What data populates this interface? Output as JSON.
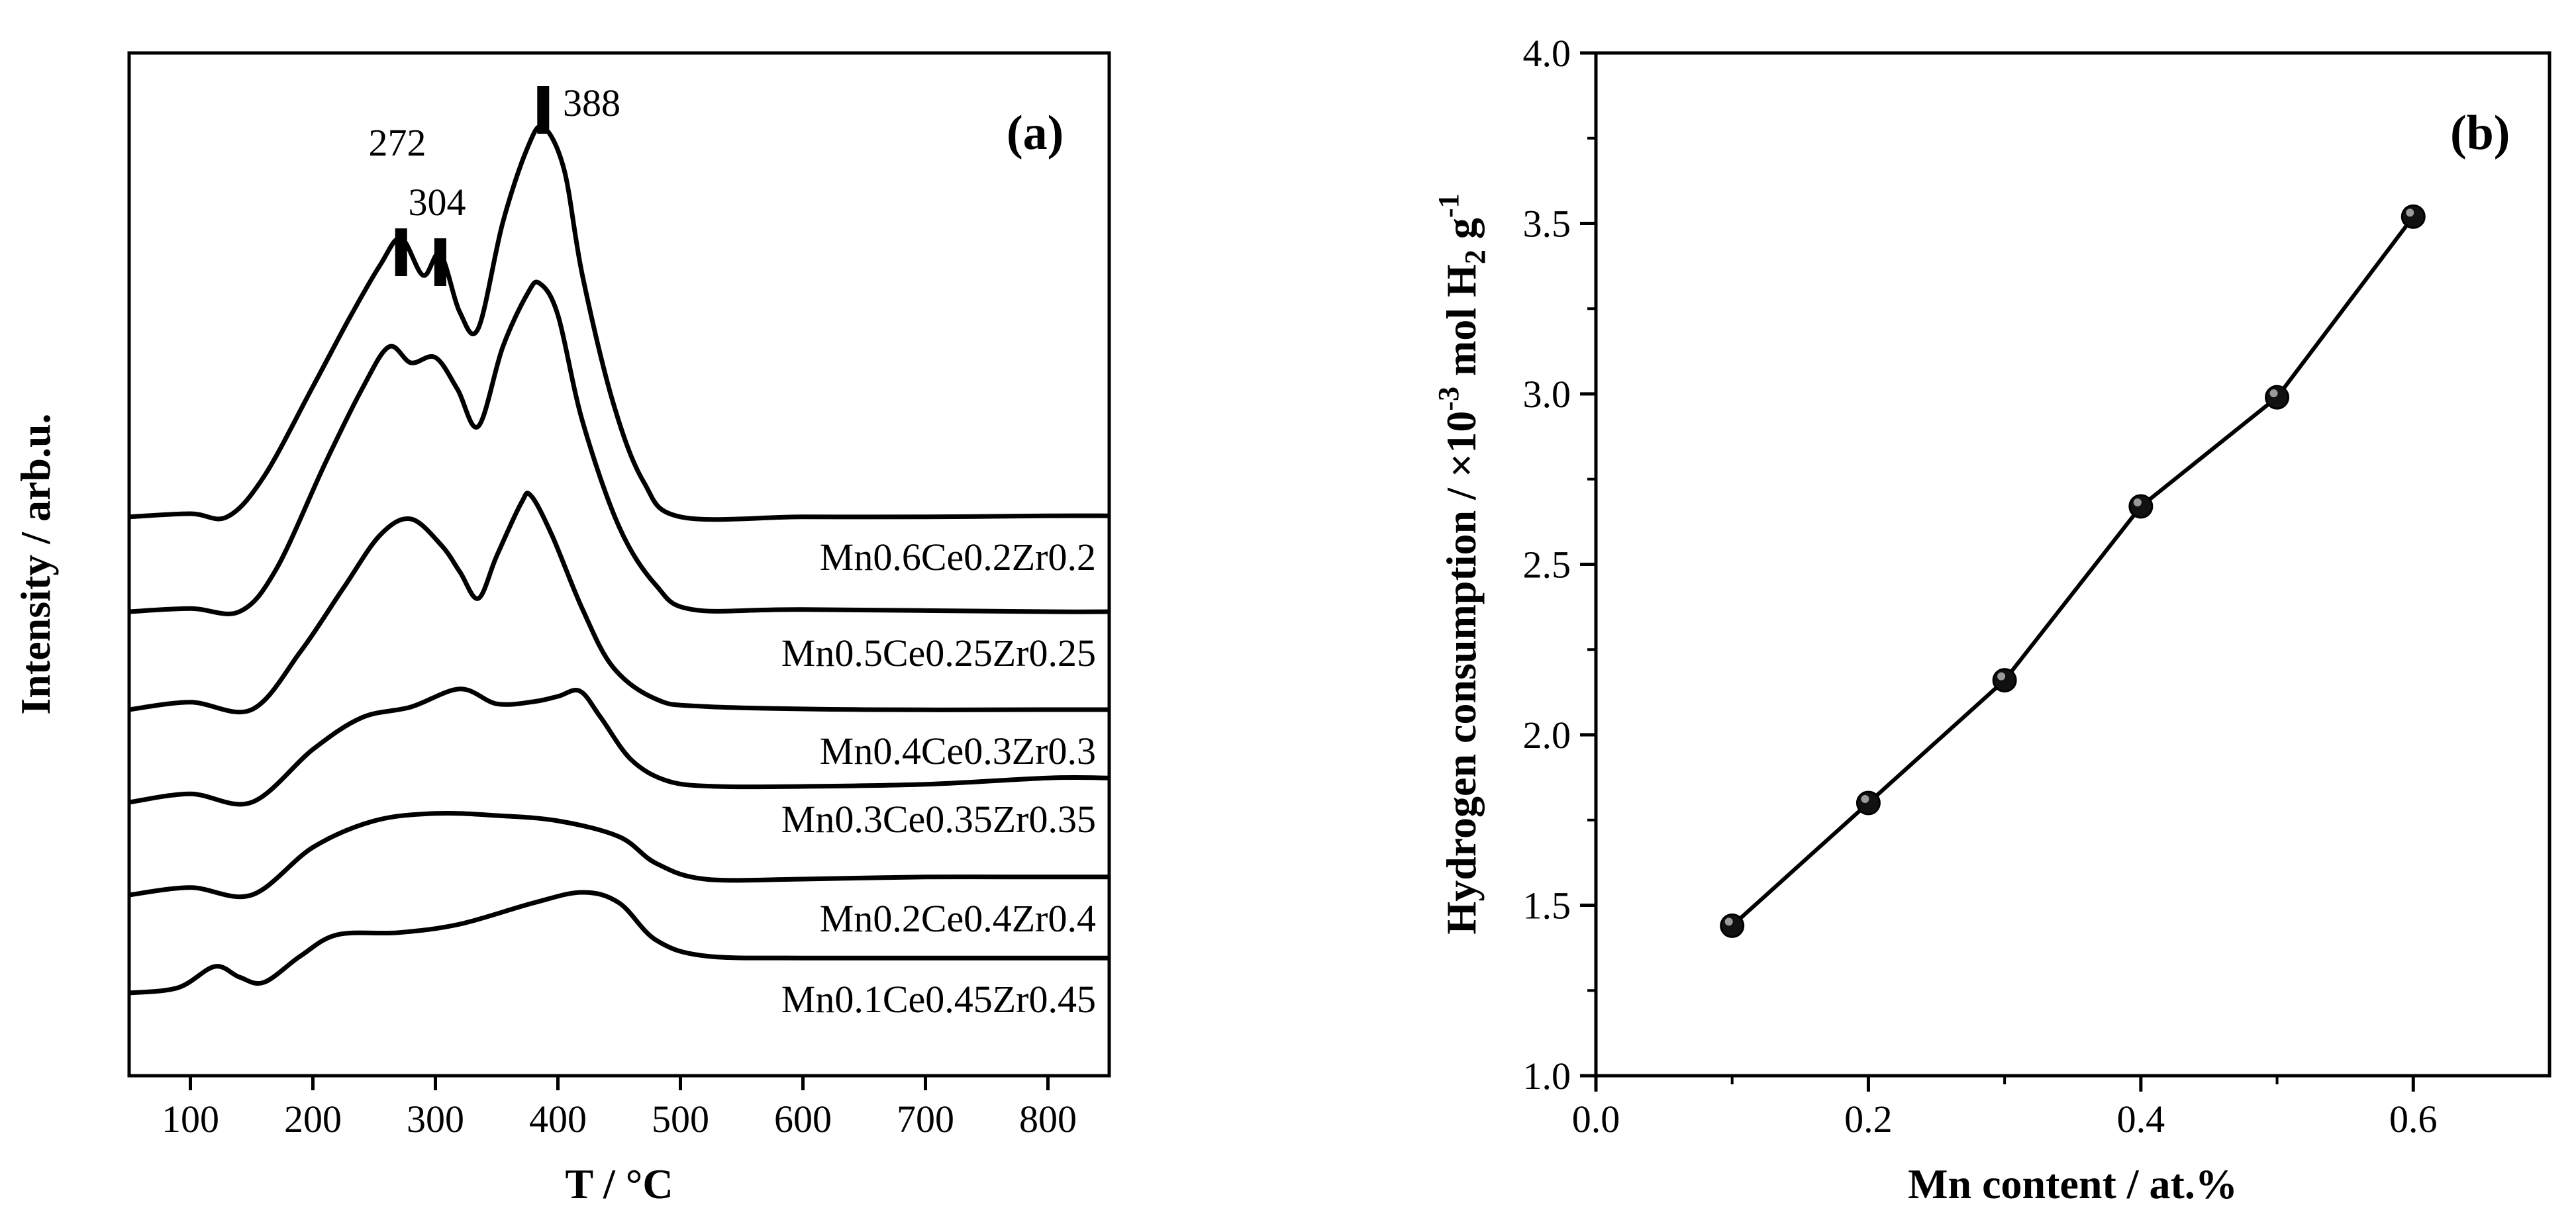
{
  "chart_data": [
    {
      "panel": "(a)",
      "type": "line",
      "xlabel": "T / °C",
      "ylabel": "Intensity / arb.u.",
      "xlim": [
        50,
        850
      ],
      "xticks": [
        100,
        200,
        300,
        400,
        500,
        600,
        700,
        800
      ],
      "y_ticks_shown": false,
      "peak_markers": [
        {
          "label": "272",
          "x": 272
        },
        {
          "label": "304",
          "x": 304
        },
        {
          "label": "388",
          "x": 388
        }
      ],
      "series": [
        {
          "name": "Mn0.6Ce0.2Zr0.2",
          "offset": 5,
          "points": [
            [
              50,
              0.12
            ],
            [
              100,
              0.15
            ],
            [
              130,
              0.12
            ],
            [
              160,
              0.5
            ],
            [
              200,
              1.35
            ],
            [
              230,
              2.0
            ],
            [
              255,
              2.5
            ],
            [
              272,
              2.75
            ],
            [
              290,
              2.4
            ],
            [
              304,
              2.6
            ],
            [
              320,
              2.05
            ],
            [
              335,
              1.9
            ],
            [
              355,
              2.9
            ],
            [
              375,
              3.6
            ],
            [
              388,
              3.8
            ],
            [
              405,
              3.4
            ],
            [
              420,
              2.4
            ],
            [
              445,
              1.2
            ],
            [
              470,
              0.45
            ],
            [
              500,
              0.12
            ],
            [
              600,
              0.12
            ],
            [
              700,
              0.12
            ],
            [
              800,
              0.13
            ],
            [
              850,
              0.13
            ]
          ]
        },
        {
          "name": "Mn0.5Ce0.25Zr0.25",
          "offset": 4,
          "points": [
            [
              50,
              0.1
            ],
            [
              100,
              0.13
            ],
            [
              140,
              0.1
            ],
            [
              170,
              0.5
            ],
            [
              210,
              1.5
            ],
            [
              240,
              2.2
            ],
            [
              262,
              2.6
            ],
            [
              280,
              2.45
            ],
            [
              300,
              2.5
            ],
            [
              318,
              2.2
            ],
            [
              335,
              1.85
            ],
            [
              355,
              2.6
            ],
            [
              375,
              3.1
            ],
            [
              385,
              3.2
            ],
            [
              400,
              2.9
            ],
            [
              420,
              1.9
            ],
            [
              450,
              0.9
            ],
            [
              480,
              0.35
            ],
            [
              510,
              0.12
            ],
            [
              600,
              0.12
            ],
            [
              800,
              0.1
            ],
            [
              850,
              0.1
            ]
          ]
        },
        {
          "name": "Mn0.4Ce0.3Zr0.3",
          "offset": 3,
          "points": [
            [
              50,
              0.05
            ],
            [
              100,
              0.12
            ],
            [
              150,
              0.05
            ],
            [
              190,
              0.6
            ],
            [
              225,
              1.2
            ],
            [
              255,
              1.7
            ],
            [
              280,
              1.85
            ],
            [
              305,
              1.6
            ],
            [
              320,
              1.35
            ],
            [
              335,
              1.1
            ],
            [
              350,
              1.5
            ],
            [
              370,
              2.0
            ],
            [
              378,
              2.07
            ],
            [
              395,
              1.7
            ],
            [
              420,
              1.0
            ],
            [
              445,
              0.45
            ],
            [
              480,
              0.15
            ],
            [
              520,
              0.08
            ],
            [
              650,
              0.05
            ],
            [
              800,
              0.05
            ],
            [
              850,
              0.05
            ]
          ]
        },
        {
          "name": "Mn0.3Ce0.35Zr0.35",
          "offset": 2,
          "points": [
            [
              50,
              0.05
            ],
            [
              100,
              0.13
            ],
            [
              150,
              0.05
            ],
            [
              200,
              0.55
            ],
            [
              240,
              0.85
            ],
            [
              280,
              0.95
            ],
            [
              320,
              1.12
            ],
            [
              350,
              0.98
            ],
            [
              380,
              1.0
            ],
            [
              400,
              1.05
            ],
            [
              418,
              1.1
            ],
            [
              435,
              0.85
            ],
            [
              460,
              0.45
            ],
            [
              490,
              0.25
            ],
            [
              530,
              0.2
            ],
            [
              600,
              0.2
            ],
            [
              700,
              0.22
            ],
            [
              800,
              0.28
            ],
            [
              850,
              0.28
            ]
          ]
        },
        {
          "name": "Mn0.2Ce0.4Zr0.4",
          "offset": 1,
          "points": [
            [
              50,
              0.05
            ],
            [
              100,
              0.12
            ],
            [
              150,
              0.05
            ],
            [
              200,
              0.5
            ],
            [
              250,
              0.75
            ],
            [
              300,
              0.82
            ],
            [
              350,
              0.8
            ],
            [
              400,
              0.75
            ],
            [
              450,
              0.6
            ],
            [
              480,
              0.35
            ],
            [
              520,
              0.2
            ],
            [
              600,
              0.2
            ],
            [
              700,
              0.22
            ],
            [
              800,
              0.22
            ],
            [
              850,
              0.22
            ]
          ]
        },
        {
          "name": "Mn0.1Ce0.45Zr0.45",
          "offset": 0,
          "points": [
            [
              50,
              0.0
            ],
            [
              90,
              0.05
            ],
            [
              120,
              0.25
            ],
            [
              140,
              0.15
            ],
            [
              160,
              0.1
            ],
            [
              190,
              0.35
            ],
            [
              220,
              0.55
            ],
            [
              270,
              0.57
            ],
            [
              320,
              0.65
            ],
            [
              380,
              0.85
            ],
            [
              420,
              0.95
            ],
            [
              450,
              0.85
            ],
            [
              480,
              0.5
            ],
            [
              520,
              0.35
            ],
            [
              600,
              0.33
            ],
            [
              700,
              0.33
            ],
            [
              800,
              0.33
            ],
            [
              850,
              0.33
            ]
          ]
        }
      ]
    },
    {
      "panel": "(b)",
      "type": "line",
      "xlabel": "Mn content / at.%",
      "ylabel_parts": {
        "main": "Hydrogen consumption / ×10",
        "exp1": "-3",
        "mid": " mol H",
        "sub": "2",
        "tail": " g",
        "exp2": "-1"
      },
      "xlim": [
        0.0,
        0.7
      ],
      "ylim": [
        1.0,
        4.0
      ],
      "xticks": [
        "0.0",
        "0.2",
        "0.4",
        "0.6"
      ],
      "yticks": [
        "1.0",
        "1.5",
        "2.0",
        "2.5",
        "3.0",
        "3.5",
        "4.0"
      ],
      "x": [
        0.1,
        0.2,
        0.3,
        0.4,
        0.5,
        0.6
      ],
      "y": [
        1.44,
        1.8,
        2.16,
        2.67,
        2.99,
        3.52
      ]
    }
  ]
}
